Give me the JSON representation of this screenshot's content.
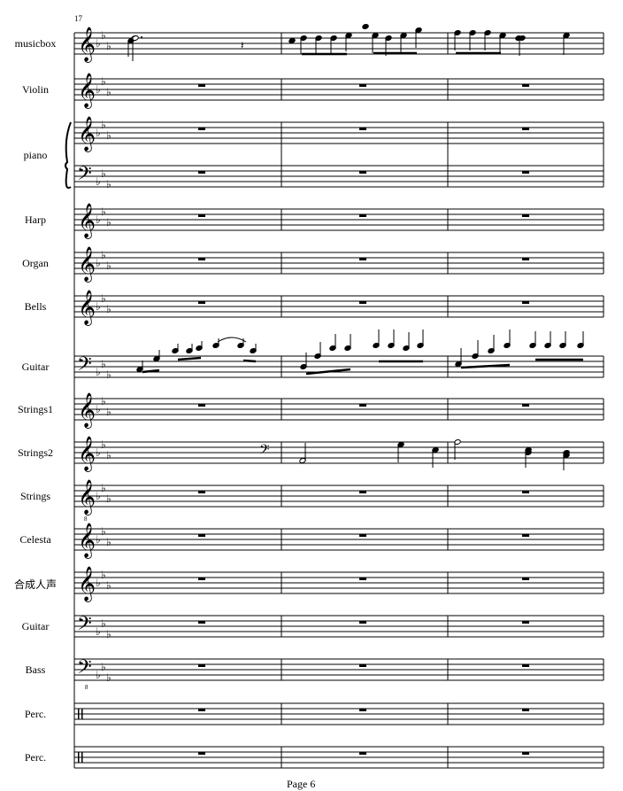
{
  "score": {
    "start_measure": "17",
    "page_label": "Page 6",
    "key_signature": "E-flat major (3 flats)",
    "measures_on_page": 3,
    "instruments": [
      {
        "name": "musicbox",
        "clef": "treble",
        "content": "notes"
      },
      {
        "name": "Violin",
        "clef": "treble",
        "content": "rests"
      },
      {
        "name": "piano",
        "clef": "treble",
        "content": "rests",
        "brace": true
      },
      {
        "name": "",
        "clef": "bass",
        "content": "rests"
      },
      {
        "name": "Harp",
        "clef": "treble",
        "content": "rests"
      },
      {
        "name": "Organ",
        "clef": "treble",
        "content": "rests"
      },
      {
        "name": "Bells",
        "clef": "treble",
        "content": "rests"
      },
      {
        "name": "Guitar",
        "clef": "bass",
        "content": "notes"
      },
      {
        "name": "Strings1",
        "clef": "treble",
        "content": "rests"
      },
      {
        "name": "Strings2",
        "clef": "treble",
        "content": "notes"
      },
      {
        "name": "Strings",
        "clef": "treble8",
        "content": "rests"
      },
      {
        "name": "Celesta",
        "clef": "treble",
        "content": "rests"
      },
      {
        "name": "合成人声",
        "clef": "treble",
        "content": "rests"
      },
      {
        "name": "Guitar",
        "clef": "bass",
        "content": "rests"
      },
      {
        "name": "Bass",
        "clef": "bass8",
        "content": "rests"
      },
      {
        "name": "Perc.",
        "clef": "percussion",
        "content": "rests"
      },
      {
        "name": "Perc.",
        "clef": "percussion",
        "content": "rests"
      }
    ]
  }
}
